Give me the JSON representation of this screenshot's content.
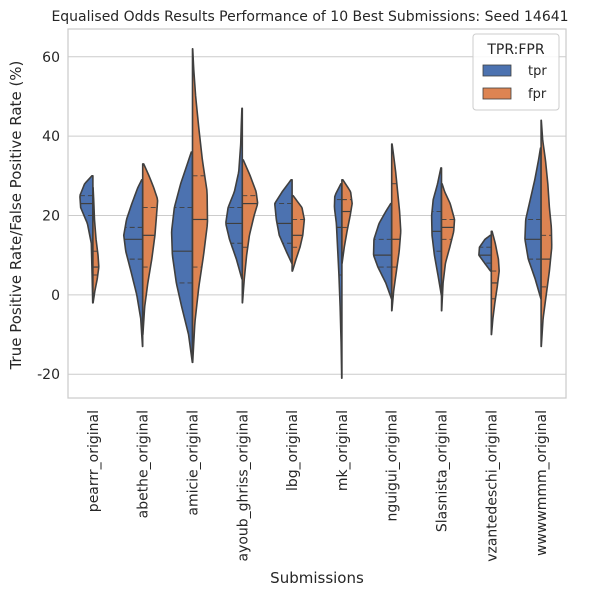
{
  "chart_data": {
    "type": "violin",
    "title": "Equalised Odds Results Performance of 10 Best Submissions: Seed 14641",
    "xlabel": "Submissions",
    "ylabel": "True Positive Rate/False Positive Rate (%)",
    "ylim": [
      -26,
      67
    ],
    "yticks": [
      -20,
      0,
      20,
      40,
      60
    ],
    "grid": true,
    "split": true,
    "inner": "quartile",
    "legend": {
      "title": "TPR:FPR",
      "position": "top-right",
      "entries": [
        "tpr",
        "fpr"
      ]
    },
    "colors": {
      "tpr": "#4c72b0",
      "fpr": "#dd8452",
      "outline": "#3f3f3f",
      "grid": "#cccccc",
      "frame": "#cccccc"
    },
    "categories": [
      "pearrr_original",
      "abethe_original",
      "amicie_original",
      "ayoub_ghriss_original",
      "lbg_original",
      "mk_original",
      "nguigui_original",
      "Slasnista_original",
      "vzantedeschi_original",
      "wwwwmmm_original"
    ],
    "series": [
      {
        "name": "tpr",
        "values": [
          {
            "min": -2,
            "q1": 20,
            "median": 23,
            "q3": 25,
            "max": 30,
            "shape": [
              [
                -2,
                0.1
              ],
              [
                5,
                0.4
              ],
              [
                13,
                0.8
              ],
              [
                18,
                2.8
              ],
              [
                22,
                6.2
              ],
              [
                25,
                6.6
              ],
              [
                28,
                4.2
              ],
              [
                30,
                0.5
              ]
            ]
          },
          {
            "min": -13,
            "q1": 9,
            "median": 14,
            "q3": 17,
            "max": 29,
            "shape": [
              [
                -13,
                0.1
              ],
              [
                -6,
                1.0
              ],
              [
                0,
                3.0
              ],
              [
                6,
                6.0
              ],
              [
                11,
                8.6
              ],
              [
                15,
                9.6
              ],
              [
                19,
                8.2
              ],
              [
                23,
                5.5
              ],
              [
                27,
                2.5
              ],
              [
                29,
                0.5
              ]
            ]
          },
          {
            "min": -17,
            "q1": 3,
            "median": 11,
            "q3": 22,
            "max": 36,
            "shape": [
              [
                -17,
                0.1
              ],
              [
                -10,
                2.0
              ],
              [
                -3,
                5.5
              ],
              [
                3,
                8.2
              ],
              [
                10,
                10.2
              ],
              [
                16,
                10.6
              ],
              [
                22,
                9.2
              ],
              [
                28,
                6.0
              ],
              [
                33,
                2.6
              ],
              [
                36,
                0.6
              ]
            ]
          },
          {
            "min": 4,
            "q1": 13,
            "median": 18,
            "q3": 22,
            "max": 47,
            "shape": [
              [
                4,
                0.2
              ],
              [
                9,
                3.0
              ],
              [
                14,
                6.5
              ],
              [
                18,
                8.4
              ],
              [
                22,
                7.2
              ],
              [
                26,
                4.0
              ],
              [
                31,
                1.8
              ],
              [
                38,
                0.8
              ],
              [
                43,
                0.5
              ],
              [
                47,
                0.2
              ]
            ]
          },
          {
            "min": 8,
            "q1": 13,
            "median": 18,
            "q3": 23,
            "max": 29,
            "shape": [
              [
                8,
                0.2
              ],
              [
                11,
                3.0
              ],
              [
                15,
                6.5
              ],
              [
                19,
                8.0
              ],
              [
                23,
                8.8
              ],
              [
                26,
                5.0
              ],
              [
                29,
                0.5
              ]
            ]
          },
          {
            "min": -21,
            "q1": 5,
            "median": 17,
            "q3": 24,
            "max": 28,
            "shape": [
              [
                -21,
                0.1
              ],
              [
                -12,
                0.4
              ],
              [
                -3,
                0.9
              ],
              [
                5,
                1.5
              ],
              [
                12,
                2.2
              ],
              [
                18,
                2.8
              ],
              [
                22,
                3.8
              ],
              [
                25,
                3.6
              ],
              [
                28,
                0.5
              ]
            ]
          },
          {
            "min": -1,
            "q1": 7,
            "median": 10,
            "q3": 14,
            "max": 23,
            "shape": [
              [
                -1,
                0.1
              ],
              [
                3,
                3.0
              ],
              [
                7,
                7.0
              ],
              [
                10,
                9.2
              ],
              [
                14,
                9.0
              ],
              [
                18,
                6.4
              ],
              [
                21,
                3.0
              ],
              [
                23,
                0.5
              ]
            ]
          },
          {
            "min": 0,
            "q1": 11,
            "median": 16,
            "q3": 21,
            "max": 32,
            "shape": [
              [
                0,
                0.1
              ],
              [
                5,
                1.8
              ],
              [
                10,
                3.6
              ],
              [
                15,
                4.8
              ],
              [
                20,
                5.0
              ],
              [
                24,
                4.2
              ],
              [
                28,
                2.0
              ],
              [
                32,
                0.3
              ]
            ]
          },
          {
            "min": 6,
            "q1": 8,
            "median": 10,
            "q3": 12,
            "max": 15,
            "shape": [
              [
                6,
                0.4
              ],
              [
                8,
                3.4
              ],
              [
                10,
                6.3
              ],
              [
                12,
                6.0
              ],
              [
                14,
                3.2
              ],
              [
                15,
                0.5
              ]
            ]
          },
          {
            "min": -1,
            "q1": 9,
            "median": 14,
            "q3": 19,
            "max": 37,
            "shape": [
              [
                -1,
                0.1
              ],
              [
                4,
                3.0
              ],
              [
                9,
                6.5
              ],
              [
                14,
                8.2
              ],
              [
                19,
                7.8
              ],
              [
                24,
                5.5
              ],
              [
                29,
                3.2
              ],
              [
                34,
                1.3
              ],
              [
                37,
                0.3
              ]
            ]
          }
        ]
      },
      {
        "name": "fpr",
        "values": [
          {
            "min": -2,
            "q1": 5,
            "median": 7,
            "q3": 11,
            "max": 27,
            "shape": [
              [
                -2,
                0.1
              ],
              [
                1,
                1.0
              ],
              [
                4,
                2.2
              ],
              [
                7,
                3.0
              ],
              [
                10,
                2.6
              ],
              [
                14,
                1.6
              ],
              [
                19,
                0.8
              ],
              [
                24,
                0.4
              ],
              [
                27,
                0.1
              ]
            ]
          },
          {
            "min": -10,
            "q1": 7,
            "median": 15,
            "q3": 22,
            "max": 33,
            "shape": [
              [
                -10,
                0.1
              ],
              [
                -3,
                1.0
              ],
              [
                3,
                2.6
              ],
              [
                9,
                4.6
              ],
              [
                15,
                6.2
              ],
              [
                20,
                7.0
              ],
              [
                24,
                7.6
              ],
              [
                27,
                5.6
              ],
              [
                30,
                3.2
              ],
              [
                33,
                0.5
              ]
            ]
          },
          {
            "min": -17,
            "q1": 7,
            "median": 19,
            "q3": 30,
            "max": 62,
            "shape": [
              [
                -17,
                0.1
              ],
              [
                -7,
                1.2
              ],
              [
                2,
                3.2
              ],
              [
                10,
                5.6
              ],
              [
                18,
                7.6
              ],
              [
                26,
                7.4
              ],
              [
                34,
                5.0
              ],
              [
                42,
                3.2
              ],
              [
                50,
                1.6
              ],
              [
                57,
                0.6
              ],
              [
                62,
                0.1
              ]
            ]
          },
          {
            "min": -2,
            "q1": 12,
            "median": 23,
            "q3": 25,
            "max": 34,
            "shape": [
              [
                -2,
                0.1
              ],
              [
                4,
                1.0
              ],
              [
                10,
                2.2
              ],
              [
                15,
                3.6
              ],
              [
                20,
                6.0
              ],
              [
                23,
                7.8
              ],
              [
                26,
                7.0
              ],
              [
                30,
                4.0
              ],
              [
                34,
                0.5
              ]
            ]
          },
          {
            "min": 6,
            "q1": 12,
            "median": 15,
            "q3": 19,
            "max": 25,
            "shape": [
              [
                6,
                0.2
              ],
              [
                9,
                2.0
              ],
              [
                12,
                4.0
              ],
              [
                15,
                5.4
              ],
              [
                19,
                6.2
              ],
              [
                22,
                5.0
              ],
              [
                25,
                0.5
              ]
            ]
          },
          {
            "min": 8,
            "q1": 17,
            "median": 21,
            "q3": 24,
            "max": 29,
            "shape": [
              [
                8,
                0.1
              ],
              [
                12,
                1.2
              ],
              [
                16,
                2.6
              ],
              [
                20,
                4.2
              ],
              [
                23,
                5.2
              ],
              [
                26,
                4.4
              ],
              [
                29,
                0.5
              ]
            ]
          },
          {
            "min": -4,
            "q1": 7,
            "median": 14,
            "q3": 28,
            "max": 38,
            "shape": [
              [
                -4,
                0.1
              ],
              [
                1,
                1.0
              ],
              [
                6,
                2.4
              ],
              [
                11,
                3.8
              ],
              [
                16,
                4.6
              ],
              [
                21,
                4.0
              ],
              [
                26,
                3.0
              ],
              [
                31,
                2.0
              ],
              [
                35,
                1.0
              ],
              [
                38,
                0.2
              ]
            ]
          },
          {
            "min": -4,
            "q1": 14,
            "median": 17,
            "q3": 19,
            "max": 28,
            "shape": [
              [
                -4,
                0.1
              ],
              [
                3,
                0.8
              ],
              [
                8,
                2.0
              ],
              [
                12,
                4.2
              ],
              [
                16,
                6.2
              ],
              [
                19,
                6.6
              ],
              [
                23,
                4.4
              ],
              [
                26,
                1.6
              ],
              [
                28,
                0.3
              ]
            ]
          },
          {
            "min": -10,
            "q1": -1,
            "median": 3,
            "q3": 6,
            "max": 16,
            "shape": [
              [
                -10,
                0.1
              ],
              [
                -6,
                0.8
              ],
              [
                -2,
                1.8
              ],
              [
                2,
                3.0
              ],
              [
                6,
                4.0
              ],
              [
                9,
                3.6
              ],
              [
                13,
                2.0
              ],
              [
                16,
                0.4
              ]
            ]
          },
          {
            "min": -13,
            "q1": 2,
            "median": 9,
            "q3": 15,
            "max": 44,
            "shape": [
              [
                -13,
                0.1
              ],
              [
                -6,
                1.0
              ],
              [
                0,
                2.6
              ],
              [
                6,
                4.2
              ],
              [
                12,
                5.4
              ],
              [
                17,
                5.2
              ],
              [
                22,
                4.2
              ],
              [
                28,
                3.4
              ],
              [
                34,
                2.2
              ],
              [
                39,
                0.8
              ],
              [
                44,
                0.1
              ]
            ]
          }
        ]
      }
    ]
  }
}
